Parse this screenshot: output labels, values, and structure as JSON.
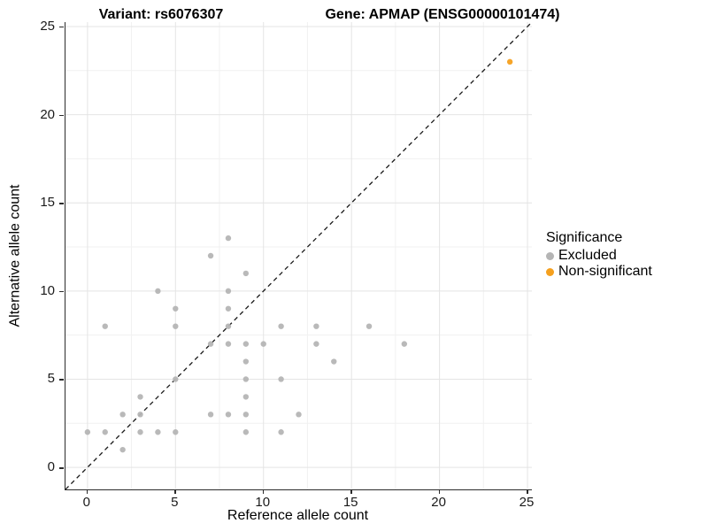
{
  "titles": {
    "left": "Variant: rs6076307",
    "right": "Gene: APMAP (ENSG00000101474)"
  },
  "axes": {
    "x": {
      "label": "Reference allele count",
      "ticks": [
        0,
        5,
        10,
        15,
        20,
        25
      ]
    },
    "y": {
      "label": "Alternative allele count",
      "ticks": [
        0,
        5,
        10,
        15,
        20,
        25
      ]
    }
  },
  "legend": {
    "title": "Significance",
    "items": [
      {
        "label": "Excluded",
        "color": "#b5b5b5"
      },
      {
        "label": "Non-significant",
        "color": "#f5a01e"
      }
    ]
  },
  "colors": {
    "excluded_point": "#b5b5b5",
    "non_significant_point": "#f5a01e",
    "grid_major": "#e4e4e4",
    "grid_minor": "#f1f1f1",
    "axis_line": "#2b2b2b",
    "reference_line": "#1a1a1a"
  },
  "chart_data": {
    "type": "scatter",
    "title": "Variant: rs6076307 / Gene: APMAP (ENSG00000101474)",
    "xlabel": "Reference allele count",
    "ylabel": "Alternative allele count",
    "xlim": [
      -1.25,
      25.25
    ],
    "ylim": [
      -1.25,
      25.25
    ],
    "x_ticks": [
      0,
      5,
      10,
      15,
      20,
      25
    ],
    "y_ticks": [
      0,
      5,
      10,
      15,
      20,
      25
    ],
    "minor_gridlines": [
      2.5,
      7.5,
      12.5,
      17.5,
      22.5
    ],
    "grid": "on",
    "legend_position": "right",
    "reference_line": {
      "type": "identity y=x",
      "style": "dashed",
      "color": "#1a1a1a"
    },
    "series": [
      {
        "name": "Excluded",
        "color": "#b5b5b5",
        "points": [
          [
            8,
            13
          ],
          [
            7,
            12
          ],
          [
            9,
            11
          ],
          [
            4,
            10
          ],
          [
            8,
            10
          ],
          [
            5,
            9
          ],
          [
            8,
            9
          ],
          [
            1,
            8
          ],
          [
            5,
            8
          ],
          [
            8,
            8
          ],
          [
            11,
            8
          ],
          [
            13,
            8
          ],
          [
            16,
            8
          ],
          [
            7,
            7
          ],
          [
            8,
            7
          ],
          [
            9,
            7
          ],
          [
            10,
            7
          ],
          [
            13,
            7
          ],
          [
            18,
            7
          ],
          [
            9,
            6
          ],
          [
            14,
            6
          ],
          [
            5,
            5
          ],
          [
            9,
            5
          ],
          [
            11,
            5
          ],
          [
            3,
            4
          ],
          [
            9,
            4
          ],
          [
            2,
            3
          ],
          [
            3,
            3
          ],
          [
            7,
            3
          ],
          [
            8,
            3
          ],
          [
            9,
            3
          ],
          [
            12,
            3
          ],
          [
            0,
            2
          ],
          [
            1,
            2
          ],
          [
            3,
            2
          ],
          [
            4,
            2
          ],
          [
            5,
            2
          ],
          [
            9,
            2
          ],
          [
            11,
            2
          ],
          [
            2,
            1
          ]
        ]
      },
      {
        "name": "Non-significant",
        "color": "#f5a01e",
        "points": [
          [
            24,
            23
          ]
        ]
      }
    ]
  }
}
